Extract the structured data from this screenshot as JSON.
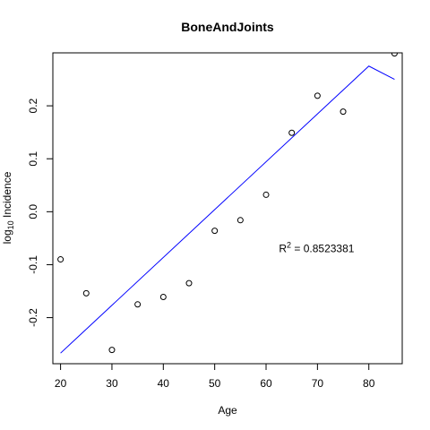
{
  "chart_data": {
    "type": "scatter",
    "title": "BoneAndJoints",
    "xlabel": "Age",
    "ylabel": "log",
    "ylabel_sub": "10",
    "ylabel_rest": " Incidence",
    "xlim": [
      18.5,
      86.5
    ],
    "ylim": [
      -0.287,
      0.3
    ],
    "xticks": [
      20,
      30,
      40,
      50,
      60,
      70,
      80
    ],
    "yticks": [
      -0.2,
      -0.1,
      0.0,
      0.1,
      0.2
    ],
    "ytick_labels": [
      "-0.2",
      "-0.1",
      "0.0",
      "0.1",
      "0.2"
    ],
    "grid": false,
    "points": {
      "x": [
        20,
        25,
        30,
        35,
        40,
        45,
        50,
        55,
        60,
        65,
        70,
        75,
        85
      ],
      "y": [
        -0.09,
        -0.154,
        -0.261,
        -0.175,
        -0.161,
        -0.135,
        -0.036,
        -0.016,
        0.032,
        0.149,
        0.219,
        0.189,
        0.299
      ]
    },
    "fit_line": {
      "color": "#0000ff",
      "x": [
        20,
        80,
        85
      ],
      "y": [
        -0.267,
        0.275,
        0.25
      ]
    },
    "annotation": {
      "prefix": "R",
      "sup": "2",
      "rest": " = 0.8523381",
      "x": 62.5,
      "y": -0.07
    }
  }
}
